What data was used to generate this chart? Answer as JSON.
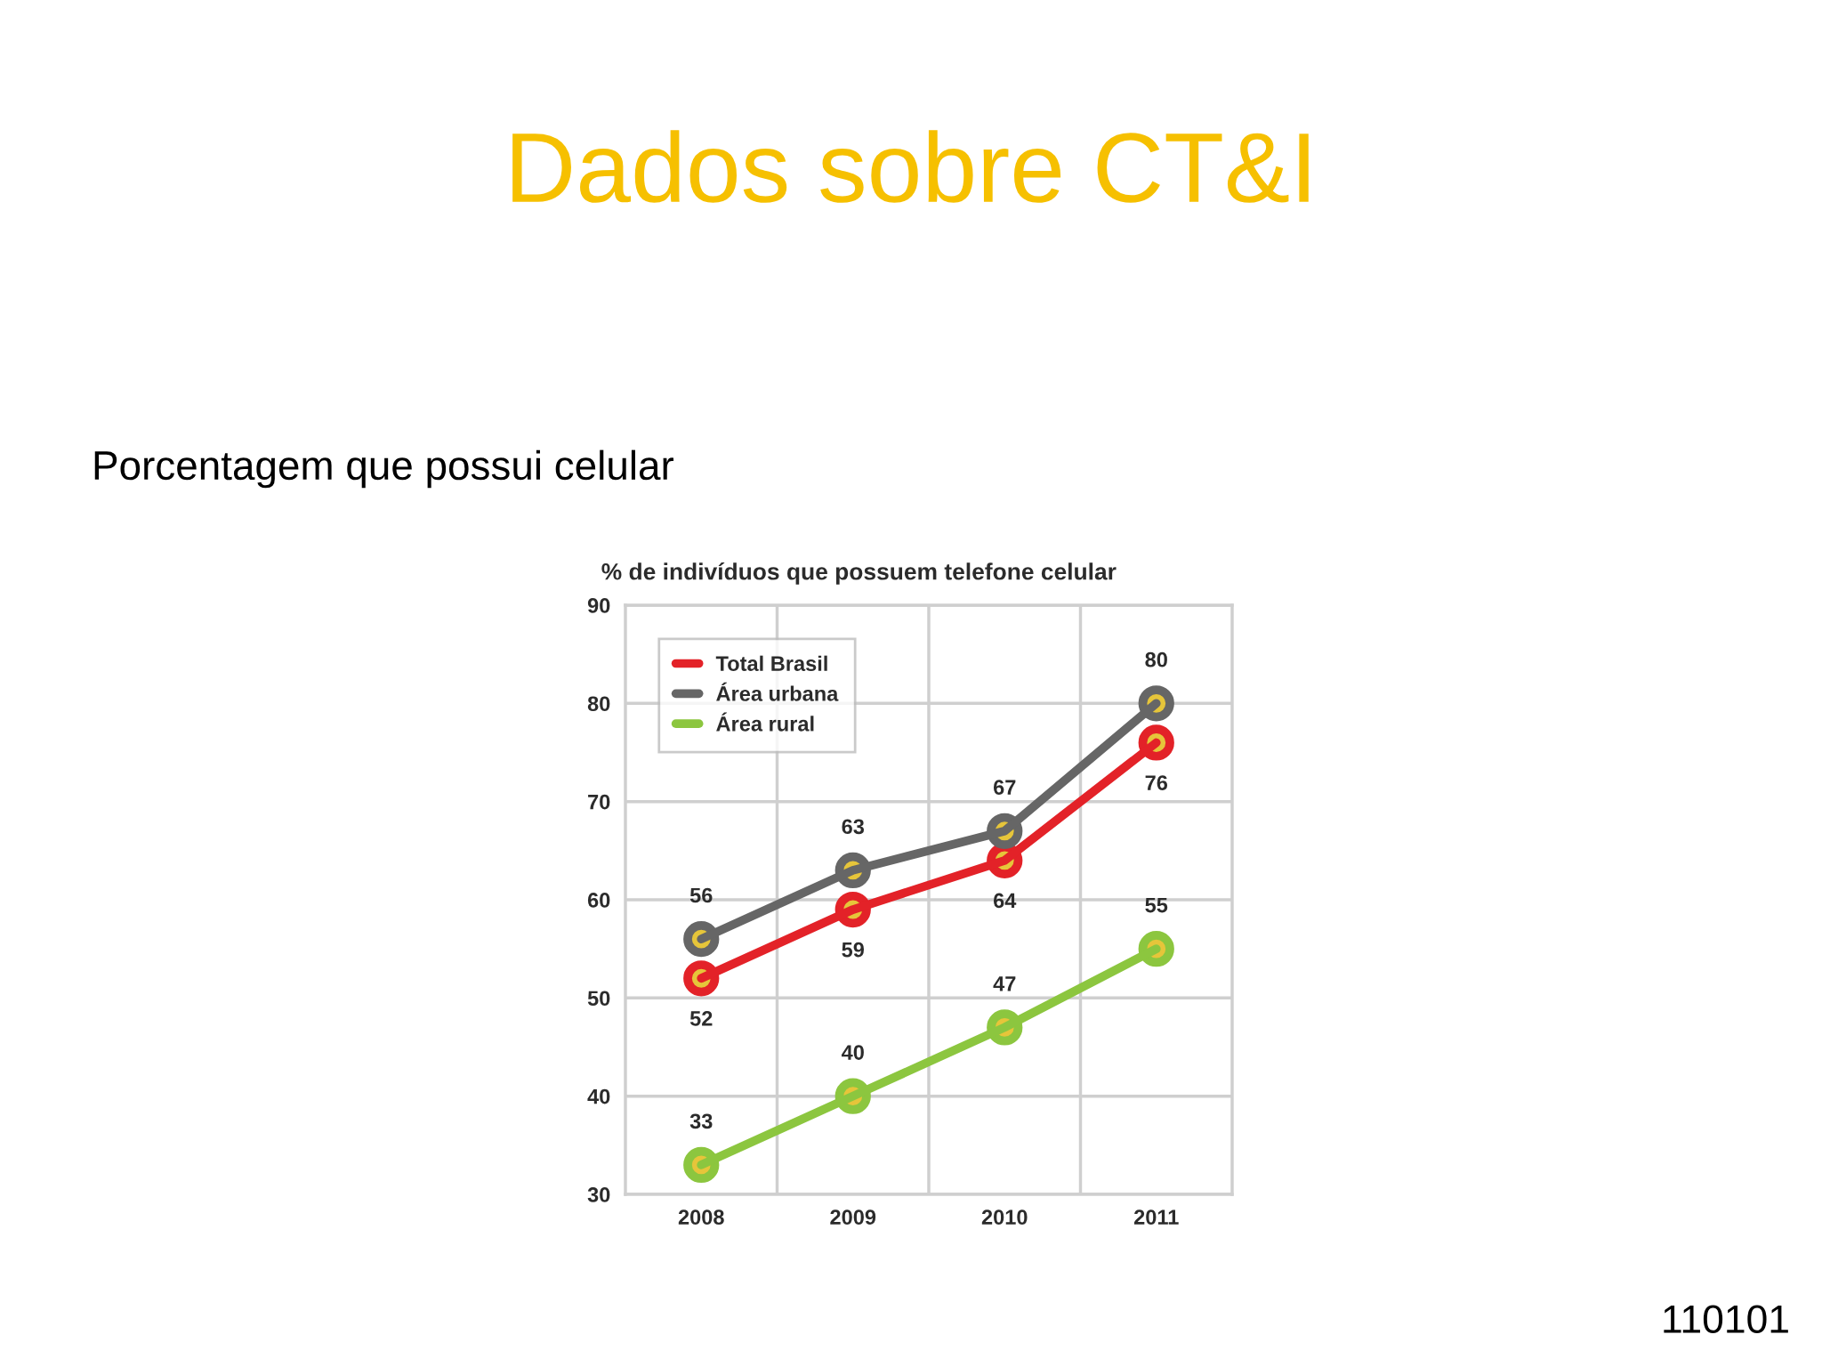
{
  "chart_data": {
    "type": "line",
    "title": "Dados sobre CT&I",
    "subtitle": "Porcentagem que possui celular",
    "ylabel": "% de indivíduos que possuem telefone celular",
    "annotations": [
      "110101"
    ],
    "categories": [
      "2008",
      "2009",
      "2010",
      "2011"
    ],
    "series": [
      {
        "name": "Total Brasil",
        "color": "#e32228",
        "values": [
          52,
          59,
          64,
          76
        ]
      },
      {
        "name": "Área urbana",
        "color": "#666666",
        "values": [
          56,
          63,
          67,
          80
        ]
      },
      {
        "name": "Área rural",
        "color": "#8cc63f",
        "values": [
          33,
          40,
          47,
          55
        ]
      }
    ],
    "ylim": [
      30,
      90
    ],
    "yticks": [
      30,
      40,
      50,
      60,
      70,
      80,
      90
    ],
    "grid": true,
    "legend": "top left",
    "marker": "circle",
    "line_style": "solid",
    "data_labels": true
  }
}
